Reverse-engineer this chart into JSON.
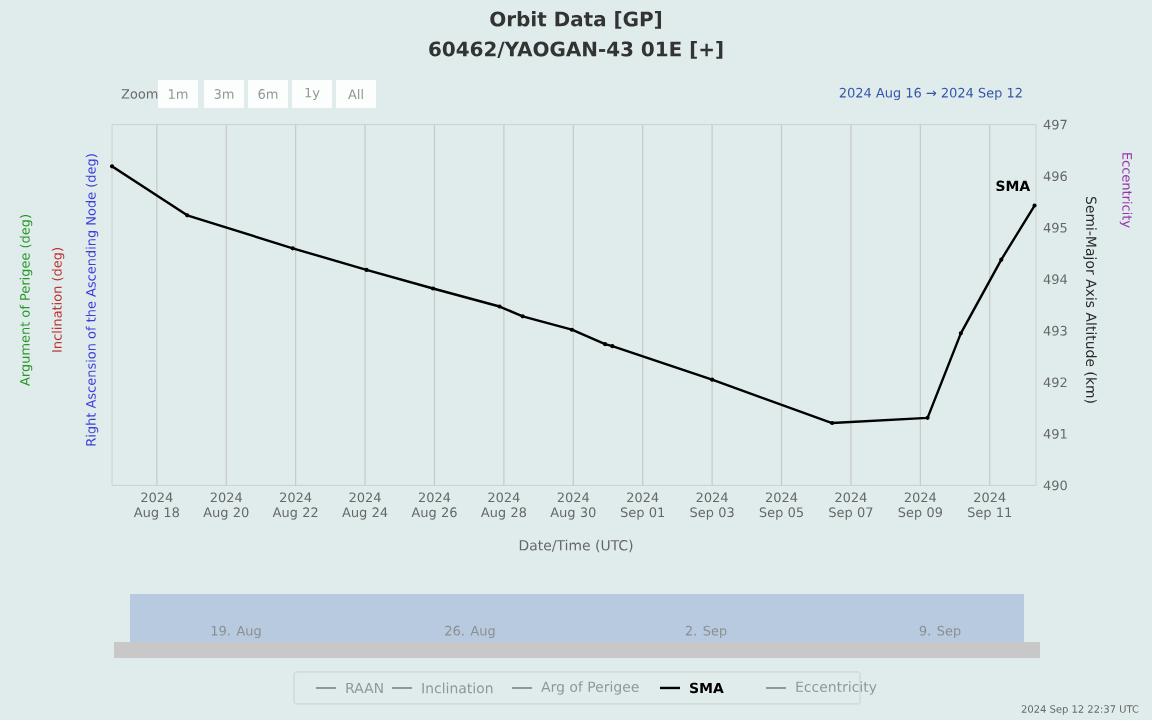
{
  "chart_data": {
    "type": "line",
    "title": "Orbit Data [GP]",
    "subtitle": "60462/YAOGAN-43 01E [+]",
    "xlabel": "Date/Time (UTC)",
    "ylabel": "Semi-Major Axis Altitude (km)",
    "x": [
      "2024-08-16T17:00",
      "2024-08-18T21:00",
      "2024-08-21T22:00",
      "2024-08-24T01:00",
      "2024-08-25T23:00",
      "2024-08-27T21:00",
      "2024-08-28T13:00",
      "2024-08-29T23:00",
      "2024-08-30T22:00",
      "2024-08-31T03:00",
      "2024-09-03T00:00",
      "2024-09-06T11:00",
      "2024-09-09T05:00",
      "2024-09-10T04:00",
      "2024-09-11T08:00",
      "2024-09-12T07:00"
    ],
    "series": [
      {
        "name": "SMA",
        "color": "#000000",
        "values": [
          496.19,
          495.24,
          494.6,
          494.18,
          493.82,
          493.47,
          493.28,
          493.02,
          492.74,
          492.7,
          492.05,
          491.21,
          491.31,
          492.95,
          494.38,
          495.43
        ]
      }
    ],
    "xlim": [
      "2024-08-16T17:00",
      "2024-09-12T08:00"
    ],
    "xticks": [
      {
        "value": "2024-08-18",
        "label": "2024 Aug 18"
      },
      {
        "value": "2024-08-20",
        "label": "2024 Aug 20"
      },
      {
        "value": "2024-08-22",
        "label": "2024 Aug 22"
      },
      {
        "value": "2024-08-24",
        "label": "2024 Aug 24"
      },
      {
        "value": "2024-08-26",
        "label": "2024 Aug 26"
      },
      {
        "value": "2024-08-28",
        "label": "2024 Aug 28"
      },
      {
        "value": "2024-08-30",
        "label": "2024 Aug 30"
      },
      {
        "value": "2024-09-01",
        "label": "2024 Sep 01"
      },
      {
        "value": "2024-09-03",
        "label": "2024 Sep 03"
      },
      {
        "value": "2024-09-05",
        "label": "2024 Sep 05"
      },
      {
        "value": "2024-09-07",
        "label": "2024 Sep 07"
      },
      {
        "value": "2024-09-09",
        "label": "2024 Sep 09"
      },
      {
        "value": "2024-09-11",
        "label": "2024 Sep 11"
      }
    ],
    "ylim": [
      490,
      497
    ],
    "yticks": [
      490,
      491,
      492,
      493,
      494,
      495,
      496,
      497
    ],
    "grid": "x",
    "legend": "bottom",
    "marker": "circle",
    "annotations": [
      "Zoom",
      "1m",
      "3m",
      "6m",
      "1y",
      "All",
      "2024 Aug 16 → 2024 Sep 12",
      "Argument of Perigee (deg)",
      "Inclination (deg)",
      "Right Ascension of the Ascending Node (deg)",
      "Eccentricity",
      "RAAN",
      "Inclination",
      "Arg of Perigee",
      "Eccentricity",
      "19. Aug",
      "26. Aug",
      "2. Sep",
      "9. Sep",
      "2024 Sep 12 22:37 UTC"
    ]
  }
}
